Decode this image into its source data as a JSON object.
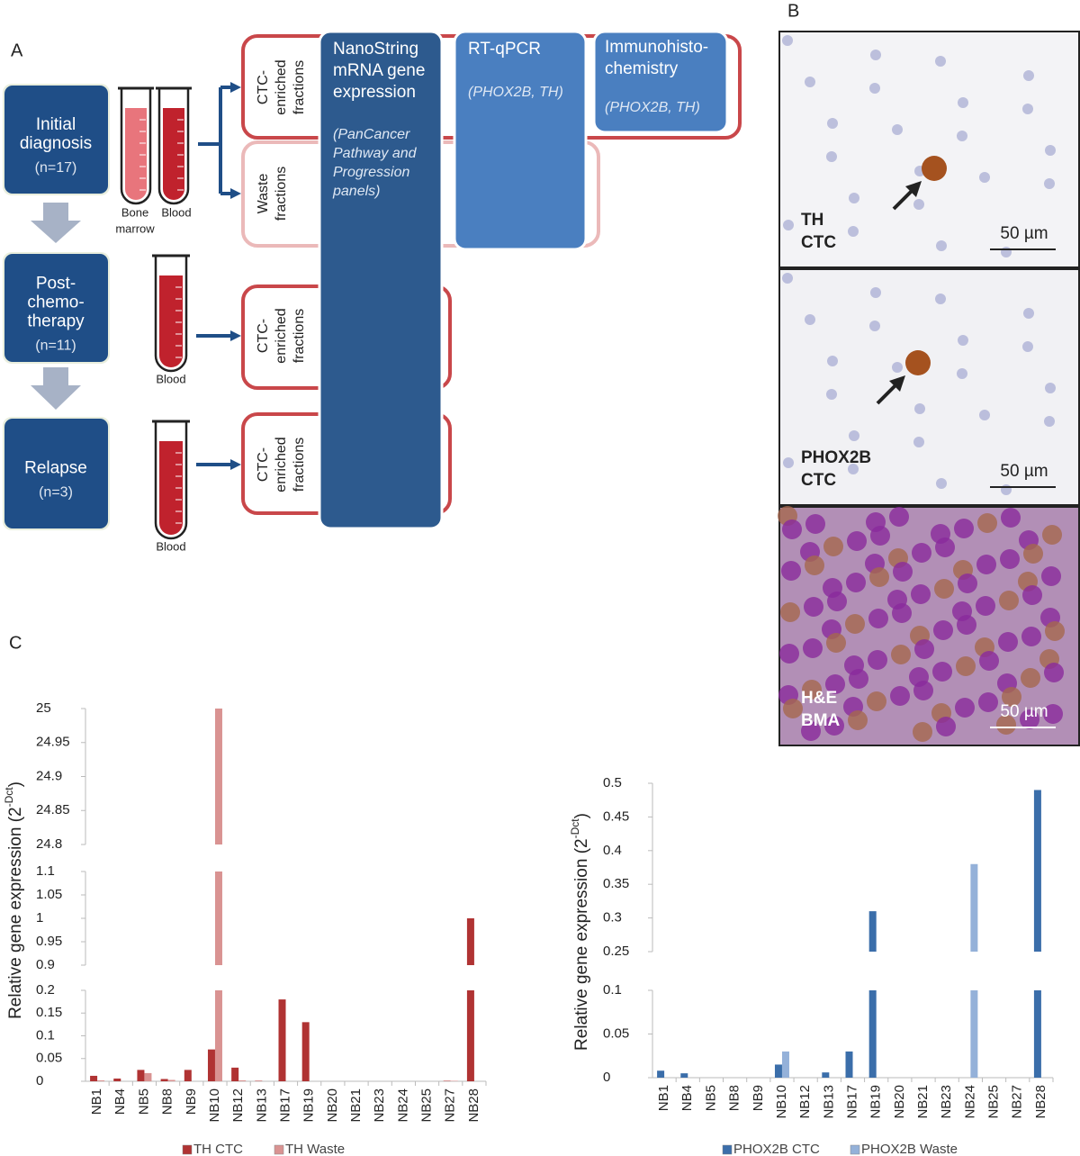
{
  "panel_a": {
    "label": "A",
    "stages": [
      {
        "title": [
          "Initial",
          "diagnosis"
        ],
        "n": "(n=17)"
      },
      {
        "title": [
          "Post-",
          "chemo-",
          "therapy"
        ],
        "n": "(n=11)"
      },
      {
        "title": [
          "Relapse"
        ],
        "n": "(n=3)"
      }
    ],
    "tube_labels": [
      [
        "Bone",
        "marrow"
      ],
      [
        "Blood"
      ],
      [
        "Blood"
      ],
      [
        "Blood"
      ]
    ],
    "fractions": [
      [
        "CTC-",
        "enriched",
        "fractions"
      ],
      [
        "Waste",
        "fractions"
      ],
      [
        "CTC-",
        "enriched",
        "fractions"
      ],
      [
        "CTC-",
        "enriched",
        "fractions"
      ]
    ],
    "methods": [
      {
        "title": [
          "NanoString",
          "mRNA gene",
          "expression"
        ],
        "detail": [
          "(PanCancer",
          "Pathway and",
          "Progression",
          "panels)"
        ]
      },
      {
        "title": [
          "RT-qPCR"
        ],
        "detail": [
          "(PHOX2B, TH)"
        ]
      },
      {
        "title": [
          "Immunohisto-",
          "chemistry"
        ],
        "detail": [
          "(PHOX2B, TH)"
        ]
      }
    ]
  },
  "panel_b": {
    "label": "B",
    "images": [
      {
        "label": [
          "TH",
          "CTC"
        ],
        "scale": "50 µm"
      },
      {
        "label": [
          "PHOX2B",
          "CTC"
        ],
        "scale": "50 µm"
      },
      {
        "label": [
          "H&E",
          "BMA"
        ],
        "scale": "50 µm"
      }
    ]
  },
  "panel_c_label": "C",
  "chart_data": [
    {
      "type": "bar",
      "y_label": [
        "Relative gene expression (2",
        "-Dct",
        ")"
      ],
      "categories": [
        "NB1",
        "NB4",
        "NB5",
        "NB8",
        "NB9",
        "NB10",
        "NB12",
        "NB13",
        "NB17",
        "NB19",
        "NB20",
        "NB21",
        "NB23",
        "NB24",
        "NB25",
        "NB27",
        "NB28"
      ],
      "segments": [
        {
          "ylim": [
            0,
            0.2
          ],
          "yticks": [
            0,
            0.05,
            0.1,
            0.15,
            0.2
          ]
        },
        {
          "ylim": [
            0.9,
            1.1
          ],
          "yticks": [
            0.9,
            0.95,
            1,
            1.05,
            1.1
          ]
        },
        {
          "ylim": [
            24.8,
            25
          ],
          "yticks": [
            24.8,
            24.85,
            24.9,
            24.95,
            25
          ]
        }
      ],
      "series": [
        {
          "name": "TH CTC",
          "color": "#b03333",
          "values": [
            0.012,
            0.006,
            0.025,
            0.005,
            0.025,
            0.07,
            0.03,
            0.001,
            0.18,
            0.13,
            0,
            0,
            0,
            0,
            0,
            0.001,
            1
          ]
        },
        {
          "name": "TH Waste",
          "color": "#d99392",
          "values": [
            0.002,
            0,
            0.018,
            0.003,
            0,
            25,
            0.002,
            0,
            0,
            0,
            0,
            0,
            0,
            0,
            0,
            0.001,
            0
          ]
        }
      ]
    },
    {
      "type": "bar",
      "y_label": [
        "Relative gene expression (2",
        "-Dct",
        ")"
      ],
      "categories": [
        "NB1",
        "NB4",
        "NB5",
        "NB8",
        "NB9",
        "NB10",
        "NB12",
        "NB13",
        "NB17",
        "NB19",
        "NB20",
        "NB21",
        "NB23",
        "NB24",
        "NB25",
        "NB27",
        "NB28"
      ],
      "segments": [
        {
          "ylim": [
            0,
            0.1
          ],
          "yticks": [
            0,
            0.05,
            0.1
          ]
        },
        {
          "ylim": [
            0.25,
            0.5
          ],
          "yticks": [
            0.25,
            0.3,
            0.35,
            0.4,
            0.45,
            0.5
          ]
        }
      ],
      "series": [
        {
          "name": "PHOX2B CTC",
          "color": "#3b6eaa",
          "values": [
            0.008,
            0.005,
            0,
            0,
            0,
            0.015,
            0,
            0.006,
            0.03,
            0.31,
            0,
            0,
            0,
            0,
            0,
            0,
            0.49
          ]
        },
        {
          "name": "PHOX2B Waste",
          "color": "#94b1d9",
          "values": [
            0,
            0,
            0,
            0,
            0,
            0.03,
            0,
            0,
            0,
            0,
            0,
            0,
            0,
            0.38,
            0,
            0,
            0
          ]
        }
      ]
    }
  ]
}
